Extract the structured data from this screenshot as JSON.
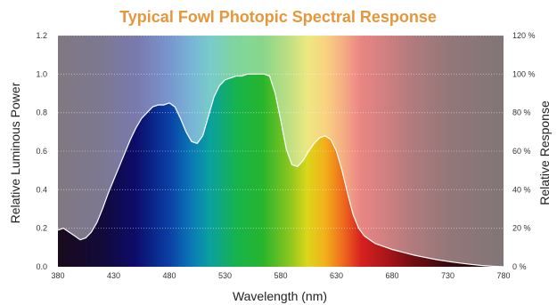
{
  "chart_data": {
    "type": "area",
    "title": "Typical Fowl Photopic Spectral Response",
    "title_color": "#E8963A",
    "xlabel": "Wavelength (nm)",
    "ylabel": "Relative Luminous Power",
    "y2label": "Relative Response",
    "xlim": [
      380,
      780
    ],
    "ylim": [
      0,
      1.2
    ],
    "y2lim": [
      0,
      1.2
    ],
    "x_ticks": [
      380,
      430,
      480,
      530,
      580,
      630,
      680,
      730,
      780
    ],
    "x_tick_labels": [
      "380",
      "430",
      "480",
      "530",
      "580",
      "630",
      "680",
      "730",
      "780"
    ],
    "y_ticks": [
      0,
      0.2,
      0.4,
      0.6,
      0.8,
      1.0,
      1.2
    ],
    "y_tick_labels": [
      "0.0",
      "0.2",
      "0.4",
      "0.6",
      "0.8",
      "1.0",
      "1.2"
    ],
    "y2_ticks": [
      0,
      0.2,
      0.4,
      0.6,
      0.8,
      1.0,
      1.2
    ],
    "y2_tick_labels": [
      "0 %",
      "20 %",
      "40 %",
      "60 %",
      "80 %",
      "100 %",
      "120 %"
    ],
    "grid": "horizontal dotted",
    "background": "spectrum gradient",
    "curve_color": "#FFFFFF",
    "series": [
      {
        "x": [
          380,
          385,
          390,
          395,
          400,
          405,
          410,
          415,
          420,
          425,
          430,
          435,
          440,
          445,
          450,
          455,
          460,
          465,
          470,
          475,
          480,
          485,
          490,
          495,
          500,
          505,
          510,
          515,
          520,
          525,
          530,
          535,
          540,
          545,
          550,
          555,
          560,
          565,
          570,
          575,
          580,
          585,
          590,
          595,
          600,
          605,
          610,
          615,
          620,
          625,
          630,
          635,
          640,
          645,
          650,
          655,
          660,
          665,
          670,
          675,
          680,
          690,
          700,
          710,
          720,
          730,
          740,
          750,
          760,
          770,
          780
        ],
        "values": [
          0.19,
          0.2,
          0.18,
          0.16,
          0.14,
          0.15,
          0.18,
          0.23,
          0.3,
          0.38,
          0.45,
          0.52,
          0.59,
          0.66,
          0.72,
          0.77,
          0.8,
          0.83,
          0.84,
          0.84,
          0.85,
          0.83,
          0.77,
          0.7,
          0.65,
          0.64,
          0.68,
          0.78,
          0.88,
          0.94,
          0.97,
          0.98,
          0.99,
          0.99,
          1.0,
          1.0,
          1.0,
          1.0,
          0.99,
          0.9,
          0.76,
          0.61,
          0.53,
          0.52,
          0.55,
          0.6,
          0.64,
          0.67,
          0.68,
          0.66,
          0.6,
          0.5,
          0.38,
          0.27,
          0.2,
          0.16,
          0.14,
          0.12,
          0.11,
          0.1,
          0.09,
          0.075,
          0.06,
          0.048,
          0.037,
          0.028,
          0.02,
          0.013,
          0.007,
          0.003,
          0.0
        ]
      }
    ]
  }
}
